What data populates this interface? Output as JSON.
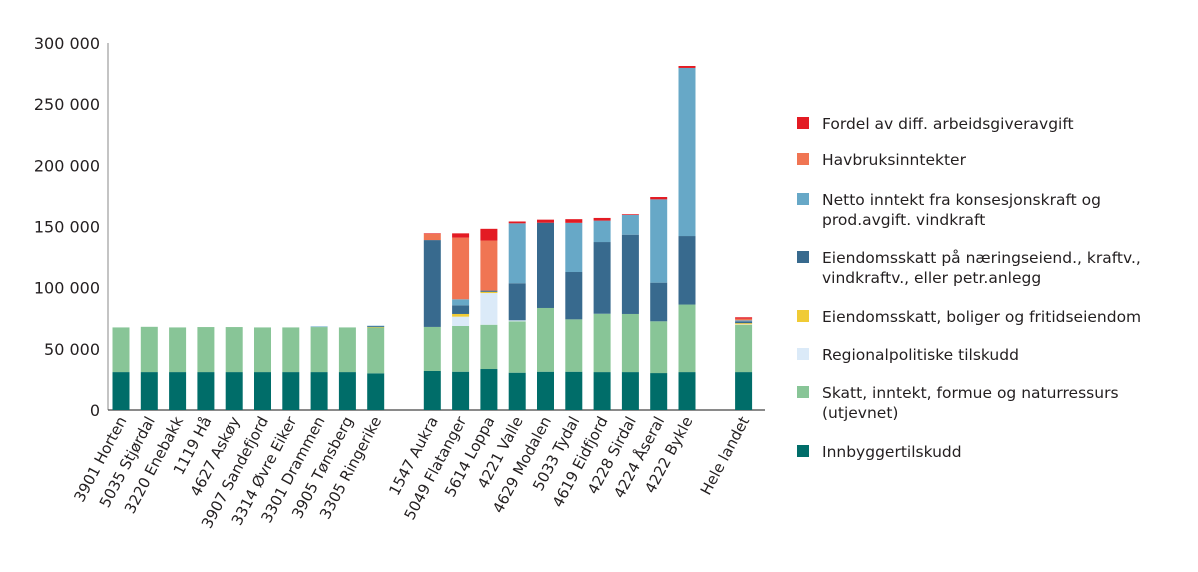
{
  "chart_data": {
    "type": "bar",
    "stacked": true,
    "title": "",
    "xlabel": "",
    "ylabel": "",
    "ylim": [
      0,
      300000
    ],
    "yticks": [
      0,
      50000,
      100000,
      150000,
      200000,
      250000,
      300000
    ],
    "ytick_labels": [
      "0",
      "50 000",
      "100 000",
      "150 000",
      "200 000",
      "250 000",
      "300 000"
    ],
    "grid": false,
    "legend_position": "right",
    "category_groups": [
      [
        "3901 Horten",
        "5035 Stjørdal",
        "3220 Enebakk",
        "1119 Hå",
        "4627 Askøy",
        "3907 Sandefjord",
        "3314 Øvre Eiker",
        "3301 Drammen",
        "3905 Tønsberg",
        "3305 Ringerike"
      ],
      [
        "1547 Aukra",
        "5049 Flatanger",
        "5614 Loppa",
        "4221 Valle",
        "4629 Modalen",
        "5033 Tydal",
        "4619 Eidfjord",
        "4228 Sirdal",
        "4224 Åseral",
        "4222 Bykle"
      ],
      [
        "Hele landet"
      ]
    ],
    "categories": [
      "3901 Horten",
      "5035 Stjørdal",
      "3220 Enebakk",
      "1119 Hå",
      "4627 Askøy",
      "3907 Sandefjord",
      "3314 Øvre Eiker",
      "3301 Drammen",
      "3905 Tønsberg",
      "3305 Ringerike",
      "1547 Aukra",
      "5049 Flatanger",
      "5614 Loppa",
      "4221 Valle",
      "4629 Modalen",
      "5033 Tydal",
      "4619 Eidfjord",
      "4228 Sirdal",
      "4224 Åseral",
      "4222 Bykle",
      "Hele landet"
    ],
    "series": [
      {
        "name": "Innbyggertilskudd",
        "color": "#006d69",
        "values": [
          31000,
          31000,
          31000,
          31000,
          31000,
          31000,
          31000,
          31000,
          31000,
          30000,
          31900,
          31300,
          33500,
          30500,
          31300,
          31300,
          31000,
          31000,
          30200,
          31000,
          31000
        ]
      },
      {
        "name": "Skatt, inntekt, formue og naturressurs (utjevnet)",
        "color": "#88c597",
        "values": [
          36500,
          37000,
          36500,
          36800,
          36800,
          36500,
          36500,
          36800,
          36500,
          37500,
          36000,
          37400,
          36200,
          42000,
          52100,
          42800,
          47700,
          47500,
          42300,
          55200,
          38500
        ]
      },
      {
        "name": "Regionalpolitiske tilskudd",
        "color": "#dbeaf8",
        "values": [
          0,
          0,
          0,
          0,
          0,
          0,
          0,
          0,
          0,
          0,
          0,
          7600,
          25900,
          800,
          0,
          0,
          0,
          0,
          0,
          0,
          500
        ]
      },
      {
        "name": "Eiendomsskatt, boliger og fritidseiendom",
        "color": "#f0cb35",
        "values": [
          0,
          0,
          0,
          0,
          0,
          0,
          0,
          0,
          0,
          300,
          0,
          2200,
          1000,
          0,
          0,
          0,
          0,
          0,
          0,
          0,
          1000
        ]
      },
      {
        "name": "Eiendomsskatt på næringseiend., kraftv., vindkraftv., eller petr.anlegg",
        "color": "#386a8e",
        "values": [
          0,
          0,
          0,
          0,
          0,
          0,
          0,
          0,
          0,
          800,
          71000,
          7100,
          1000,
          30300,
          69700,
          38700,
          58600,
          64800,
          31600,
          56000,
          1500
        ]
      },
      {
        "name": "Netto inntekt fra konsesjonskraft og prod.avgift. vindkraft",
        "color": "#67a8c7",
        "values": [
          0,
          0,
          0,
          0,
          0,
          0,
          0,
          500,
          0,
          300,
          0,
          4900,
          0,
          49000,
          0,
          40200,
          17500,
          16100,
          68100,
          137400,
          800
        ]
      },
      {
        "name": "Havbruksinntekter",
        "color": "#f07553",
        "values": [
          0,
          0,
          0,
          0,
          0,
          0,
          0,
          0,
          0,
          0,
          5000,
          50400,
          40900,
          0,
          0,
          0,
          0,
          0,
          0,
          0,
          1300
        ]
      },
      {
        "name": "Fordel av diff. arbeidsgiveravgift",
        "color": "#e31b23",
        "values": [
          0,
          0,
          0,
          0,
          0,
          0,
          0,
          0,
          0,
          0,
          500,
          3500,
          9600,
          1500,
          2500,
          3000,
          2200,
          600,
          1900,
          1600,
          1200
        ]
      }
    ],
    "legend_order": [
      "Fordel av diff. arbeidsgiveravgift",
      "Havbruksinntekter",
      "Netto inntekt fra konsesjonskraft og prod.avgift. vindkraft",
      "Eiendomsskatt på næringseiend., kraftv., vindkraftv., eller petr.anlegg",
      "Eiendomsskatt, boliger og fritidseiendom",
      "Regionalpolitiske tilskudd",
      "Skatt, inntekt, formue og naturressurs (utjevnet)",
      "Innbyggertilskudd"
    ],
    "legend_lines": {
      "Fordel av diff. arbeidsgiveravgift": [
        "Fordel av diff. arbeidsgiveravgift"
      ],
      "Havbruksinntekter": [
        "Havbruksinntekter"
      ],
      "Netto inntekt fra konsesjonskraft og prod.avgift. vindkraft": [
        "Netto inntekt fra konsesjonskraft og",
        "prod.avgift. vindkraft"
      ],
      "Eiendomsskatt på næringseiend., kraftv., vindkraftv., eller petr.anlegg": [
        "Eiendomsskatt på næringseiend., kraftv.,",
        "vindkraftv., eller petr.anlegg"
      ],
      "Eiendomsskatt, boliger og fritidseiendom": [
        "Eiendomsskatt, boliger og fritidseiendom"
      ],
      "Regionalpolitiske tilskudd": [
        "Regionalpolitiske tilskudd"
      ],
      "Skatt, inntekt, formue og naturressurs (utjevnet)": [
        "Skatt, inntekt, formue og naturressurs",
        "(utjevnet)"
      ],
      "Innbyggertilskudd": [
        "Innbyggertilskudd"
      ]
    }
  }
}
